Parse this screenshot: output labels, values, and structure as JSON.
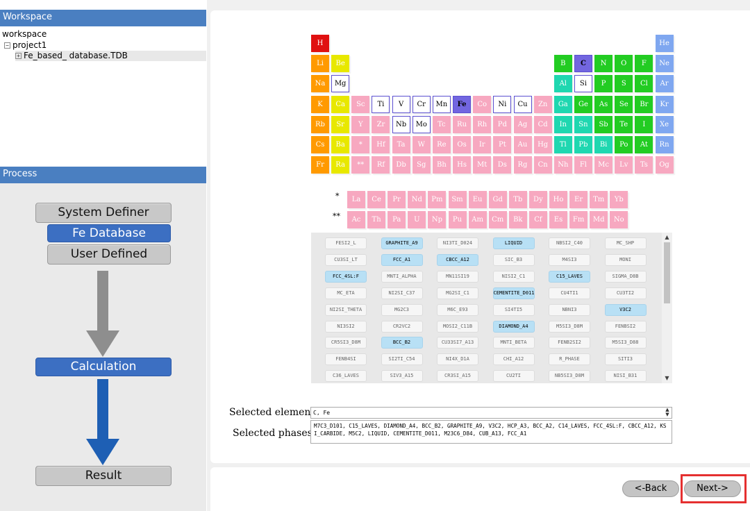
{
  "workspace": {
    "header": "Workspace",
    "tree": [
      {
        "label": "workspace",
        "depth": 0,
        "toggle": ""
      },
      {
        "label": "project1",
        "depth": 1,
        "toggle": "−"
      },
      {
        "label": "Fe_based_ database.TDB",
        "depth": 2,
        "toggle": "+"
      }
    ]
  },
  "process": {
    "header": "Process",
    "steps": {
      "system_definer": "System Definer",
      "fe_database": "Fe Database",
      "user_defined": "User Defined",
      "calculation": "Calculation",
      "result": "Result"
    },
    "colors": {
      "active": "#3c6fc2",
      "inactive": "#c8c8c8",
      "arrow_gray": "#8e8e8e",
      "arrow_blue": "#1e5fb4"
    }
  },
  "periodic_table": {
    "group_colors": {
      "h": "#e01010",
      "alkali": "#ff9a00",
      "alkaline": "#e8e800",
      "transition": "#f7a8c0",
      "metalloid": "#22cc22",
      "nonmetal": "#22cc22",
      "post_transition": "#1fd7b0",
      "halogen": "#22cc22",
      "noble": "#7fa7f0",
      "lanthanide": "#f7a8c0",
      "actinide": "#f7a8c0"
    },
    "rows": [
      [
        [
          "H",
          "h"
        ],
        null,
        null,
        null,
        null,
        null,
        null,
        null,
        null,
        null,
        null,
        null,
        null,
        null,
        null,
        null,
        null,
        [
          "He",
          "noble"
        ]
      ],
      [
        [
          "Li",
          "alkali"
        ],
        [
          "Be",
          "alkaline"
        ],
        null,
        null,
        null,
        null,
        null,
        null,
        null,
        null,
        null,
        null,
        [
          "B",
          "metalloid"
        ],
        [
          "C",
          "selb"
        ],
        [
          "N",
          "nonmetal"
        ],
        [
          "O",
          "nonmetal"
        ],
        [
          "F",
          "halogen"
        ],
        [
          "Ne",
          "noble"
        ]
      ],
      [
        [
          "Na",
          "alkali"
        ],
        [
          "Mg",
          "sel"
        ],
        null,
        null,
        null,
        null,
        null,
        null,
        null,
        null,
        null,
        null,
        [
          "Al",
          "post_transition"
        ],
        [
          "Si",
          "sel"
        ],
        [
          "P",
          "nonmetal"
        ],
        [
          "S",
          "nonmetal"
        ],
        [
          "Cl",
          "halogen"
        ],
        [
          "Ar",
          "noble"
        ]
      ],
      [
        [
          "K",
          "alkali"
        ],
        [
          "Ca",
          "alkaline"
        ],
        [
          "Sc",
          "transition"
        ],
        [
          "Ti",
          "sel"
        ],
        [
          "V",
          "sel"
        ],
        [
          "Cr",
          "sel"
        ],
        [
          "Mn",
          "sel"
        ],
        [
          "Fe",
          "selb"
        ],
        [
          "Co",
          "transition"
        ],
        [
          "Ni",
          "sel"
        ],
        [
          "Cu",
          "sel"
        ],
        [
          "Zn",
          "transition"
        ],
        [
          "Ga",
          "post_transition"
        ],
        [
          "Ge",
          "metalloid"
        ],
        [
          "As",
          "metalloid"
        ],
        [
          "Se",
          "nonmetal"
        ],
        [
          "Br",
          "halogen"
        ],
        [
          "Kr",
          "noble"
        ]
      ],
      [
        [
          "Rb",
          "alkali"
        ],
        [
          "Sr",
          "alkaline"
        ],
        [
          "Y",
          "transition"
        ],
        [
          "Zr",
          "transition"
        ],
        [
          "Nb",
          "sel"
        ],
        [
          "Mo",
          "sel"
        ],
        [
          "Tc",
          "transition"
        ],
        [
          "Ru",
          "transition"
        ],
        [
          "Rh",
          "transition"
        ],
        [
          "Pd",
          "transition"
        ],
        [
          "Ag",
          "transition"
        ],
        [
          "Cd",
          "transition"
        ],
        [
          "In",
          "post_transition"
        ],
        [
          "Sn",
          "post_transition"
        ],
        [
          "Sb",
          "metalloid"
        ],
        [
          "Te",
          "metalloid"
        ],
        [
          "I",
          "halogen"
        ],
        [
          "Xe",
          "noble"
        ]
      ],
      [
        [
          "Cs",
          "alkali"
        ],
        [
          "Ba",
          "alkaline"
        ],
        [
          "*",
          "transition"
        ],
        [
          "Hf",
          "transition"
        ],
        [
          "Ta",
          "transition"
        ],
        [
          "W",
          "transition"
        ],
        [
          "Re",
          "transition"
        ],
        [
          "Os",
          "transition"
        ],
        [
          "Ir",
          "transition"
        ],
        [
          "Pt",
          "transition"
        ],
        [
          "Au",
          "transition"
        ],
        [
          "Hg",
          "transition"
        ],
        [
          "Tl",
          "post_transition"
        ],
        [
          "Pb",
          "post_transition"
        ],
        [
          "Bi",
          "post_transition"
        ],
        [
          "Po",
          "metalloid"
        ],
        [
          "At",
          "halogen"
        ],
        [
          "Rn",
          "noble"
        ]
      ],
      [
        [
          "Fr",
          "alkali"
        ],
        [
          "Ra",
          "alkaline"
        ],
        [
          "**",
          "transition"
        ],
        [
          "Rf",
          "transition"
        ],
        [
          "Db",
          "transition"
        ],
        [
          "Sg",
          "transition"
        ],
        [
          "Bh",
          "transition"
        ],
        [
          "Hs",
          "transition"
        ],
        [
          "Mt",
          "transition"
        ],
        [
          "Ds",
          "transition"
        ],
        [
          "Rg",
          "transition"
        ],
        [
          "Cn",
          "transition"
        ],
        [
          "Nh",
          "transition"
        ],
        [
          "Fl",
          "transition"
        ],
        [
          "Mc",
          "transition"
        ],
        [
          "Lv",
          "transition"
        ],
        [
          "Ts",
          "transition"
        ],
        [
          "Og",
          "transition"
        ]
      ]
    ],
    "lanthanide_marker": "*",
    "actinide_marker": "**",
    "lanthanides": [
      "La",
      "Ce",
      "Pr",
      "Nd",
      "Pm",
      "Sm",
      "Eu",
      "Gd",
      "Tb",
      "Dy",
      "Ho",
      "Er",
      "Tm",
      "Yb"
    ],
    "actinides": [
      "Ac",
      "Th",
      "Pa",
      "U",
      "Np",
      "Pu",
      "Am",
      "Cm",
      "Bk",
      "Cf",
      "Es",
      "Fm",
      "Md",
      "No"
    ]
  },
  "phases": [
    [
      "FESI2_L",
      false
    ],
    [
      "GRAPHITE_A9",
      true
    ],
    [
      "NI3TI_D024",
      false
    ],
    [
      "LIQUID",
      true
    ],
    [
      "NBSI2_C40",
      false
    ],
    [
      "MC_SHP",
      false
    ],
    [
      "CU3SI_LT",
      false
    ],
    [
      "FCC_A1",
      true
    ],
    [
      "CBCC_A12",
      true
    ],
    [
      "SIC_B3",
      false
    ],
    [
      "M4SI3",
      false
    ],
    [
      "MONI",
      false
    ],
    [
      "FCC_4SL:F",
      true
    ],
    [
      "MNTI_ALPHA",
      false
    ],
    [
      "MN11SI19",
      false
    ],
    [
      "NISI2_C1",
      false
    ],
    [
      "C15_LAVES",
      true
    ],
    [
      "SIGMA_D8B",
      false
    ],
    [
      "MC_ETA",
      false
    ],
    [
      "NI2SI_C37",
      false
    ],
    [
      "MG2SI_C1",
      false
    ],
    [
      "CEMENTITE_D011",
      true
    ],
    [
      "CU4TI1",
      false
    ],
    [
      "CU3TI2",
      false
    ],
    [
      "NI2SI_THETA",
      false
    ],
    [
      "MG2C3",
      false
    ],
    [
      "M6C_E93",
      false
    ],
    [
      "SI4TI5",
      false
    ],
    [
      "NBNI3",
      false
    ],
    [
      "V3C2",
      true
    ],
    [
      "NI3SI2",
      false
    ],
    [
      "CR2VC2",
      false
    ],
    [
      "MOSI2_C11B",
      false
    ],
    [
      "DIAMOND_A4",
      true
    ],
    [
      "M5SI3_D8M",
      false
    ],
    [
      "FENBSI2",
      false
    ],
    [
      "CR5SI3_D8M",
      false
    ],
    [
      "BCC_B2",
      true
    ],
    [
      "CU33SI7_A13",
      false
    ],
    [
      "MNTI_BETA",
      false
    ],
    [
      "FENB2SI2",
      false
    ],
    [
      "M5SI3_D88",
      false
    ],
    [
      "FENB4SI",
      false
    ],
    [
      "SI2TI_C54",
      false
    ],
    [
      "NI4X_D1A",
      false
    ],
    [
      "CHI_A12",
      false
    ],
    [
      "R_PHASE",
      false
    ],
    [
      "SITI3",
      false
    ],
    [
      "C36_LAVES",
      false
    ],
    [
      "SIV3_A15",
      false
    ],
    [
      "CR3SI_A15",
      false
    ],
    [
      "CU2TI",
      false
    ],
    [
      "NB5SI3_D8M",
      false
    ],
    [
      "NISI_B31",
      false
    ]
  ],
  "form": {
    "elements_label": "Selected elements:",
    "elements_value": "C, Fe",
    "phases_label": "Selected phases:",
    "phases_value": "M7C3_D101, C15_LAVES, DIAMOND_A4, BCC_B2, GRAPHITE_A9, V3C2, HCP_A3, BCC_A2, C14_LAVES, FCC_4SL:F, CBCC_A12, KSI_CARBIDE, M5C2, LIQUID, CEMENTITE_D011, M23C6_D84, CUB_A13, FCC_A1"
  },
  "nav": {
    "back": "<-Back",
    "next": "Next->"
  },
  "icons": {
    "spin_up": "▲",
    "spin_down": "▼",
    "scroll_up": "▲",
    "scroll_down": "▼"
  }
}
